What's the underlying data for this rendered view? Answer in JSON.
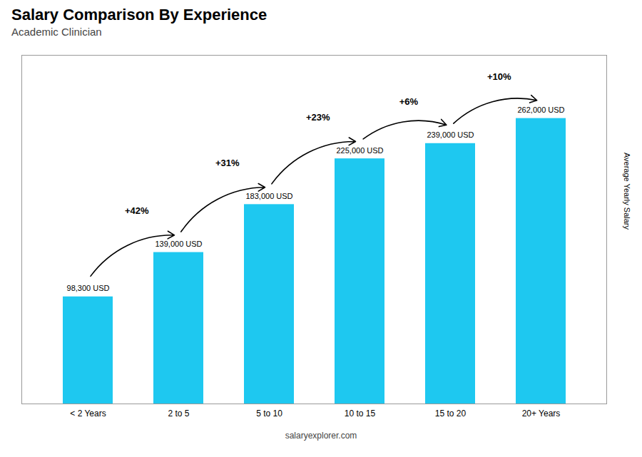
{
  "chart_data": {
    "type": "bar",
    "title": "Salary Comparison By Experience",
    "subtitle": "Academic Clinician",
    "caption": "salaryexplorer.com",
    "ylabel": "Average Yearly Salary",
    "categories": [
      "< 2 Years",
      "2 to 5",
      "5 to 10",
      "10 to 15",
      "15 to 20",
      "20+ Years"
    ],
    "values": [
      98300,
      139000,
      183000,
      225000,
      239000,
      262000
    ],
    "value_labels": [
      "98,300 USD",
      "139,000 USD",
      "183,000 USD",
      "225,000 USD",
      "239,000 USD",
      "262,000 USD"
    ],
    "data_labels": true,
    "color": "#1ec8f0",
    "ylim": [
      0,
      320000
    ],
    "yticks": [],
    "tick_labels": "x",
    "grid": false,
    "annotations": [
      {
        "text": "+42%",
        "from": "< 2 Years",
        "to": "2 to 5"
      },
      {
        "text": "+31%",
        "from": "2 to 5",
        "to": "5 to 10"
      },
      {
        "text": "+23%",
        "from": "5 to 10",
        "to": "10 to 15"
      },
      {
        "text": "+6%",
        "from": "10 to 15",
        "to": "15 to 20"
      },
      {
        "text": "+10%",
        "from": "15 to 20",
        "to": "20+ Years"
      }
    ]
  }
}
